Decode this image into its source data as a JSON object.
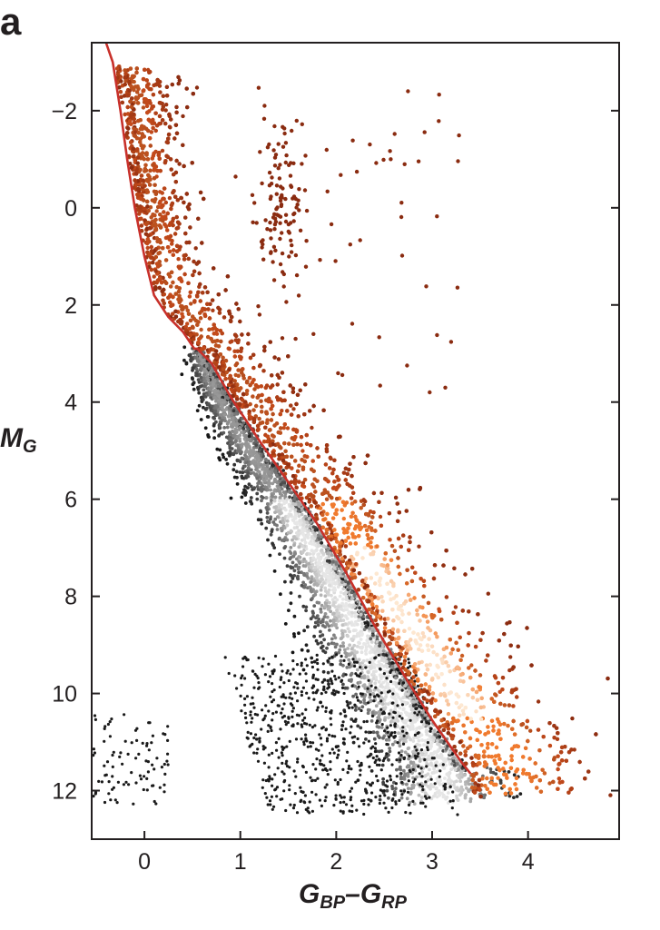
{
  "panel_label": "a",
  "chart_data": {
    "type": "scatter",
    "title": "",
    "xlabel": "G_BP–G_RP",
    "ylabel": "M_G",
    "xlabel_parts": {
      "main1": "G",
      "sub1": "BP",
      "dash": "–",
      "main2": "G",
      "sub2": "RP"
    },
    "ylabel_parts": {
      "main": "M",
      "sub": "G"
    },
    "xlim": [
      -0.55,
      4.95
    ],
    "ylim": [
      13.0,
      -3.4
    ],
    "y_inverted": true,
    "grid": false,
    "x_ticks": [
      0,
      1,
      2,
      3,
      4
    ],
    "x_tick_labels": [
      "0",
      "1",
      "2",
      "3",
      "4"
    ],
    "y_ticks": [
      -2,
      0,
      2,
      4,
      6,
      8,
      10,
      12
    ],
    "y_tick_labels": [
      "−2",
      "0",
      "2",
      "4",
      "6",
      "8",
      "10",
      "12"
    ],
    "colors": {
      "boundary_line": "#c8302a",
      "lower_population": "#1a1a1a",
      "lower_population_light": "#dcdcdc",
      "upper_population": "#7a2a10",
      "upper_population_light": "#fde3c8",
      "upper_population_mid": "#f07a2e"
    },
    "boundary_curve": {
      "name": "",
      "x": [
        0.52,
        0.4,
        0.25,
        0.1,
        0.0,
        -0.1,
        -0.18,
        -0.25,
        -0.33,
        -0.4
      ],
      "y": [
        2.9,
        2.55,
        2.25,
        1.8,
        1.0,
        0.0,
        -1.0,
        -2.0,
        -3.0,
        -3.4
      ]
    },
    "boundary_lower": {
      "x": [
        0.55,
        0.7,
        0.9,
        1.2,
        1.5,
        1.8,
        2.1,
        2.4,
        2.7,
        3.0,
        3.3,
        3.4
      ],
      "y": [
        2.9,
        3.2,
        3.9,
        4.8,
        5.65,
        6.5,
        7.5,
        8.6,
        9.6,
        10.55,
        11.4,
        11.65
      ]
    },
    "populations": [
      {
        "name": "",
        "role": "below_boundary",
        "ridge_x": [
          0.6,
          0.8,
          1.0,
          1.3,
          1.6,
          1.9,
          2.2,
          2.5,
          2.8,
          3.1
        ],
        "ridge_y": [
          3.1,
          4.0,
          4.7,
          5.6,
          6.5,
          7.5,
          8.6,
          9.7,
          10.7,
          11.4
        ],
        "color_dense": "#f2f2f2",
        "color_sparse": "#111111"
      },
      {
        "name": "",
        "role": "above_boundary",
        "ridge_x": [
          0.1,
          0.3,
          0.6,
          1.0,
          1.4,
          1.8,
          2.2,
          2.6,
          3.0,
          3.4,
          3.8
        ],
        "ridge_y": [
          0.5,
          1.6,
          2.5,
          3.6,
          4.7,
          5.7,
          6.9,
          8.1,
          9.3,
          10.4,
          11.3
        ],
        "color_dense": "#fde8d2",
        "color_sparse": "#8a2b10"
      }
    ],
    "white_dwarf_cluster": {
      "x_range": [
        -0.55,
        0.25
      ],
      "y_range": [
        10.4,
        12.3
      ]
    },
    "red_clump": {
      "x": 1.25,
      "y": 0.6
    }
  }
}
